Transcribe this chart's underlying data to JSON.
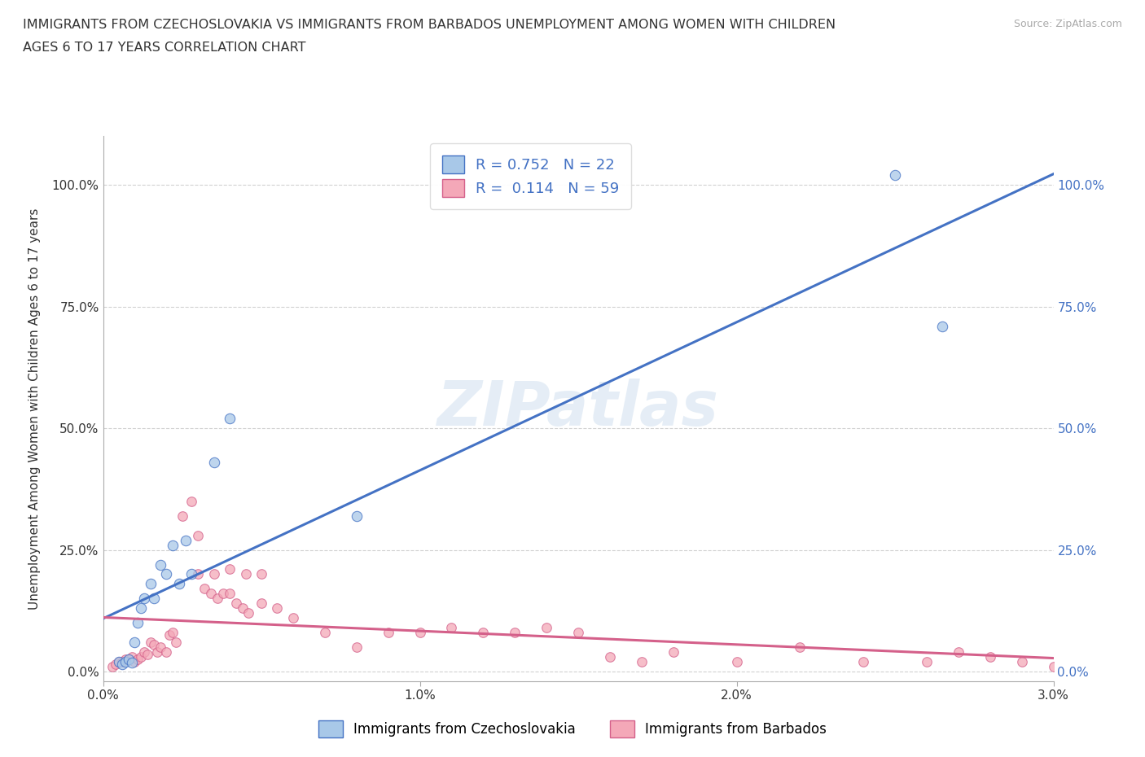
{
  "title_line1": "IMMIGRANTS FROM CZECHOSLOVAKIA VS IMMIGRANTS FROM BARBADOS UNEMPLOYMENT AMONG WOMEN WITH CHILDREN",
  "title_line2": "AGES 6 TO 17 YEARS CORRELATION CHART",
  "source": "Source: ZipAtlas.com",
  "ylabel": "Unemployment Among Women with Children Ages 6 to 17 years",
  "xlim": [
    0.0,
    0.03
  ],
  "ylim": [
    -0.02,
    1.1
  ],
  "yticks": [
    0.0,
    0.25,
    0.5,
    0.75,
    1.0
  ],
  "ytick_labels": [
    "0.0%",
    "25.0%",
    "50.0%",
    "75.0%",
    "100.0%"
  ],
  "xticks": [
    0.0,
    0.01,
    0.02,
    0.03
  ],
  "xtick_labels": [
    "0.0%",
    "1.0%",
    "2.0%",
    "3.0%"
  ],
  "r1": 0.752,
  "n1": 22,
  "r2": 0.114,
  "n2": 59,
  "color_czech": "#a8c8e8",
  "color_barbados": "#f4a8b8",
  "line_color_czech": "#4472c4",
  "line_color_barbados": "#d4608a",
  "watermark": "ZIPatlas",
  "legend_label1": "Immigrants from Czechoslovakia",
  "legend_label2": "Immigrants from Barbados",
  "czech_x": [
    0.0005,
    0.0006,
    0.0007,
    0.0008,
    0.0009,
    0.001,
    0.0011,
    0.0012,
    0.0013,
    0.0015,
    0.0016,
    0.0018,
    0.002,
    0.0022,
    0.0024,
    0.0026,
    0.0028,
    0.0035,
    0.004,
    0.008,
    0.025,
    0.0265
  ],
  "czech_y": [
    0.02,
    0.015,
    0.02,
    0.025,
    0.018,
    0.06,
    0.1,
    0.13,
    0.15,
    0.18,
    0.15,
    0.22,
    0.2,
    0.26,
    0.18,
    0.27,
    0.2,
    0.43,
    0.52,
    0.32,
    1.02,
    0.71
  ],
  "barbados_x": [
    0.0003,
    0.0004,
    0.0005,
    0.0006,
    0.0007,
    0.0008,
    0.0009,
    0.001,
    0.0011,
    0.0012,
    0.0013,
    0.0014,
    0.0015,
    0.0016,
    0.0017,
    0.0018,
    0.002,
    0.0021,
    0.0022,
    0.0023,
    0.0025,
    0.0028,
    0.003,
    0.0032,
    0.0034,
    0.0036,
    0.0038,
    0.004,
    0.0042,
    0.0044,
    0.0046,
    0.005,
    0.0055,
    0.006,
    0.007,
    0.008,
    0.009,
    0.01,
    0.011,
    0.012,
    0.013,
    0.014,
    0.015,
    0.016,
    0.017,
    0.018,
    0.02,
    0.022,
    0.024,
    0.026,
    0.027,
    0.028,
    0.029,
    0.03,
    0.003,
    0.0035,
    0.004,
    0.0045,
    0.005
  ],
  "barbados_y": [
    0.01,
    0.015,
    0.02,
    0.02,
    0.025,
    0.025,
    0.03,
    0.02,
    0.025,
    0.03,
    0.04,
    0.035,
    0.06,
    0.055,
    0.04,
    0.05,
    0.04,
    0.075,
    0.08,
    0.06,
    0.32,
    0.35,
    0.28,
    0.17,
    0.16,
    0.15,
    0.16,
    0.16,
    0.14,
    0.13,
    0.12,
    0.14,
    0.13,
    0.11,
    0.08,
    0.05,
    0.08,
    0.08,
    0.09,
    0.08,
    0.08,
    0.09,
    0.08,
    0.03,
    0.02,
    0.04,
    0.02,
    0.05,
    0.02,
    0.02,
    0.04,
    0.03,
    0.02,
    0.01,
    0.2,
    0.2,
    0.21,
    0.2,
    0.2
  ],
  "background_color": "#ffffff",
  "grid_color": "#cccccc"
}
